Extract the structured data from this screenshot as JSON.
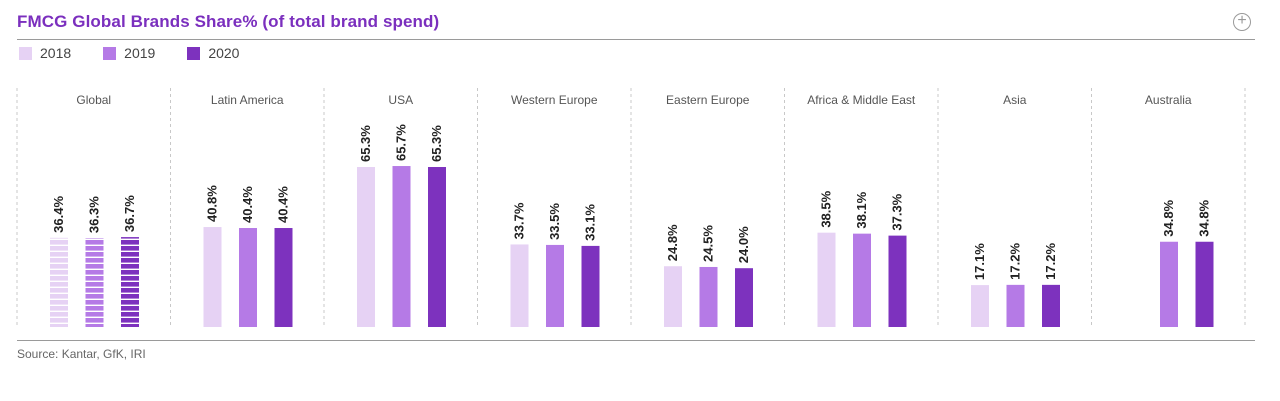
{
  "title": "FMCG Global Brands Share% (of total brand spend)",
  "expand_icon": "plus-circle-icon",
  "source": "Source: Kantar, GfK, IRI",
  "colors": {
    "2018": "#e6d2f4",
    "2019": "#b57ae6",
    "2020": "#7d32be"
  },
  "chart_data": {
    "type": "bar",
    "title": "FMCG Global Brands Share% (of total brand spend)",
    "xlabel": "",
    "ylabel": "",
    "grid": false,
    "legend_position": "top-left",
    "ylim": [
      0,
      70
    ],
    "categories": [
      "Global",
      "Latin America",
      "USA",
      "Western Europe",
      "Eastern Europe",
      "Africa & Middle East",
      "Asia",
      "Australia"
    ],
    "series": [
      {
        "name": "2018",
        "values": [
          36.4,
          40.8,
          65.3,
          33.7,
          24.8,
          38.5,
          17.1,
          null
        ],
        "labels": [
          "36.4%",
          "40.8%",
          "65.3%",
          "33.7%",
          "24.8%",
          "38.5%",
          "17.1%",
          null
        ]
      },
      {
        "name": "2019",
        "values": [
          36.3,
          40.4,
          65.7,
          33.5,
          24.5,
          38.1,
          17.2,
          34.8
        ],
        "labels": [
          "36.3%",
          "40.4%",
          "65.7%",
          "33.5%",
          "24.5%",
          "38.1%",
          "17.2%",
          "34.8%"
        ]
      },
      {
        "name": "2020",
        "values": [
          36.7,
          40.4,
          65.3,
          33.1,
          24.0,
          37.3,
          17.2,
          34.8
        ],
        "labels": [
          "36.7%",
          "40.4%",
          "65.3%",
          "33.1%",
          "24.0%",
          "37.3%",
          "17.2%",
          "34.8%"
        ]
      }
    ],
    "striped_categories": [
      "Global"
    ]
  }
}
